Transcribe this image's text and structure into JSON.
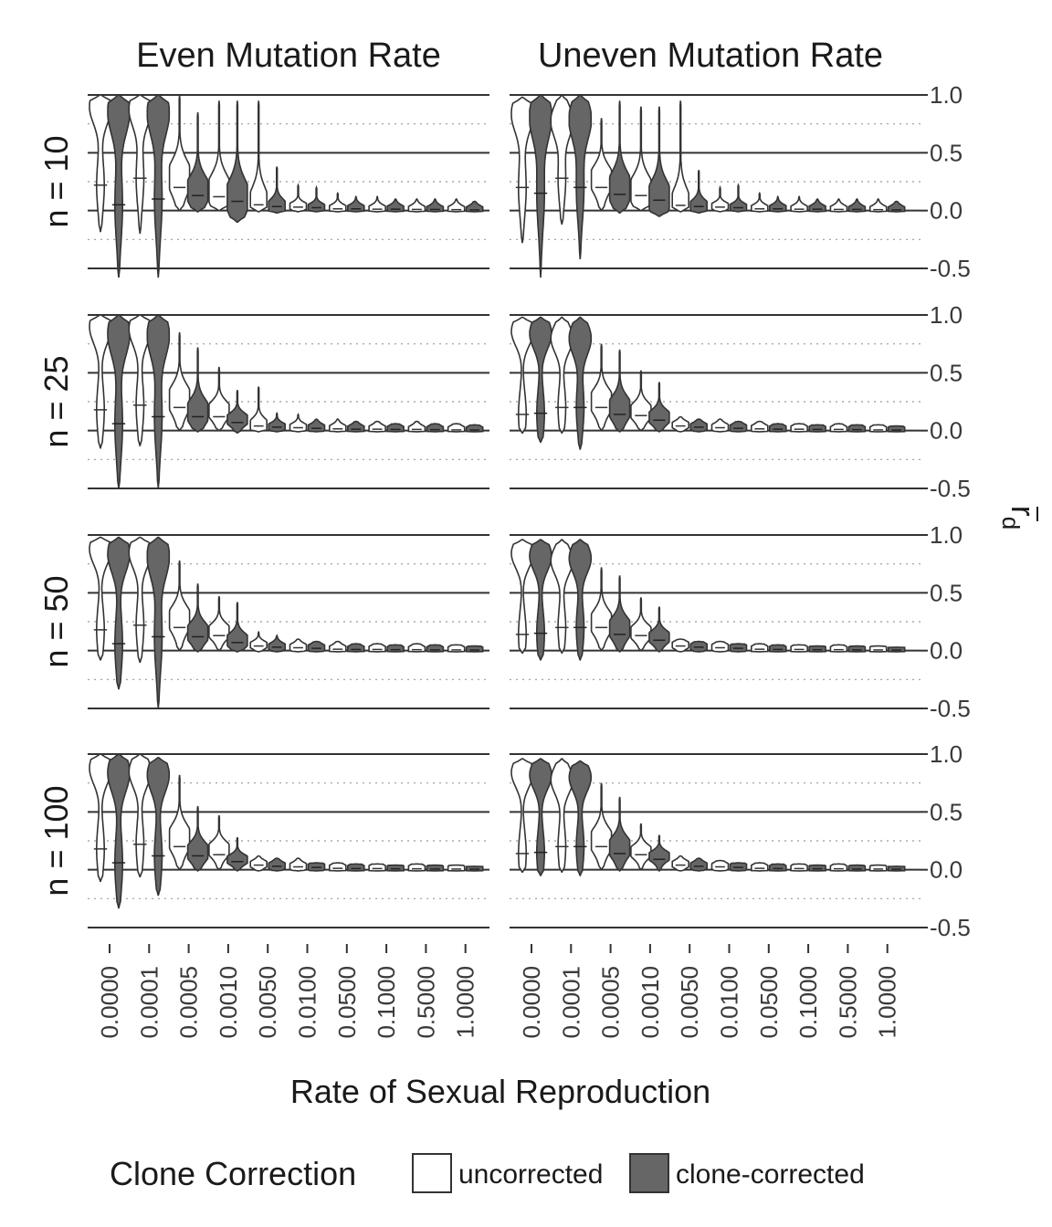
{
  "chart_data": {
    "type": "violin",
    "facet_columns": [
      "Even Mutation Rate",
      "Uneven Mutation Rate"
    ],
    "facet_rows": [
      "n = 10",
      "n = 25",
      "n = 50",
      "n = 100"
    ],
    "categories": [
      "0.0000",
      "0.0001",
      "0.0005",
      "0.0010",
      "0.0050",
      "0.0100",
      "0.0500",
      "0.1000",
      "0.5000",
      "1.0000"
    ],
    "xlabel": "Rate of Sexual Reproduction",
    "ylabel": "r̄d",
    "ylabel_main": "r",
    "ylabel_sub": "d",
    "ylim": [
      -0.5,
      1.0
    ],
    "yticks": [
      "1.0",
      "0.5",
      "0.0",
      "-0.5"
    ],
    "ytick_values": [
      1.0,
      0.5,
      0.0,
      -0.5
    ],
    "minor_grid": [
      0.75,
      0.25,
      -0.25
    ],
    "legend": {
      "title": "Clone Correction",
      "position": "bottom",
      "entries": [
        {
          "name": "uncorrected",
          "color": "#ffffff"
        },
        {
          "name": "clone-corrected",
          "color": "#666666"
        }
      ]
    },
    "series_colors": {
      "uncorrected": "#ffffff",
      "clone-corrected": "#666666"
    },
    "panels": [
      {
        "column": "Even Mutation Rate",
        "row": "n = 10",
        "uncorrected": [
          [
            -0.18,
            1.0,
            0.9,
            0.22
          ],
          [
            -0.2,
            1.0,
            0.88,
            0.28
          ],
          [
            0.0,
            1.0,
            0.3,
            0.2
          ],
          [
            0.0,
            0.95,
            0.18,
            0.12
          ],
          [
            -0.01,
            0.95,
            0.06,
            0.05
          ],
          [
            -0.01,
            0.22,
            0.04,
            0.03
          ],
          [
            -0.01,
            0.15,
            0.02,
            0.015
          ],
          [
            -0.01,
            0.12,
            0.015,
            0.012
          ],
          [
            -0.01,
            0.1,
            0.012,
            0.01
          ],
          [
            -0.01,
            0.1,
            0.01,
            0.008
          ]
        ],
        "clone-corrected": [
          [
            -0.58,
            1.0,
            0.86,
            0.05
          ],
          [
            -0.58,
            1.0,
            0.85,
            0.1
          ],
          [
            -0.01,
            0.85,
            0.18,
            0.13
          ],
          [
            -0.1,
            0.95,
            0.12,
            0.08
          ],
          [
            -0.02,
            0.38,
            0.04,
            0.035
          ],
          [
            -0.01,
            0.2,
            0.03,
            0.025
          ],
          [
            -0.01,
            0.12,
            0.02,
            0.015
          ],
          [
            -0.01,
            0.1,
            0.015,
            0.012
          ],
          [
            -0.01,
            0.1,
            0.01,
            0.01
          ],
          [
            -0.01,
            0.08,
            0.008,
            0.006
          ]
        ]
      },
      {
        "column": "Uneven Mutation Rate",
        "row": "n = 10",
        "uncorrected": [
          [
            -0.28,
            0.98,
            0.84,
            0.2
          ],
          [
            -0.12,
            1.0,
            0.78,
            0.28
          ],
          [
            0.0,
            0.8,
            0.28,
            0.2
          ],
          [
            0.0,
            0.9,
            0.18,
            0.13
          ],
          [
            -0.01,
            0.95,
            0.05,
            0.045
          ],
          [
            -0.01,
            0.2,
            0.04,
            0.03
          ],
          [
            -0.01,
            0.15,
            0.02,
            0.015
          ],
          [
            -0.01,
            0.12,
            0.015,
            0.012
          ],
          [
            -0.01,
            0.1,
            0.012,
            0.01
          ],
          [
            -0.01,
            0.1,
            0.01,
            0.008
          ]
        ],
        "clone-corrected": [
          [
            -0.58,
            1.0,
            0.82,
            0.15
          ],
          [
            -0.42,
            1.0,
            0.8,
            0.2
          ],
          [
            -0.02,
            0.95,
            0.2,
            0.14
          ],
          [
            -0.05,
            0.9,
            0.12,
            0.09
          ],
          [
            -0.02,
            0.35,
            0.04,
            0.035
          ],
          [
            -0.01,
            0.22,
            0.03,
            0.025
          ],
          [
            -0.01,
            0.12,
            0.02,
            0.015
          ],
          [
            -0.01,
            0.1,
            0.015,
            0.012
          ],
          [
            -0.01,
            0.1,
            0.01,
            0.01
          ],
          [
            -0.01,
            0.08,
            0.008,
            0.006
          ]
        ]
      },
      {
        "column": "Even Mutation Rate",
        "row": "n = 25",
        "uncorrected": [
          [
            -0.15,
            1.0,
            0.9,
            0.18
          ],
          [
            -0.13,
            1.0,
            0.88,
            0.22
          ],
          [
            0.0,
            0.85,
            0.28,
            0.2
          ],
          [
            0.0,
            0.55,
            0.18,
            0.12
          ],
          [
            -0.01,
            0.38,
            0.05,
            0.04
          ],
          [
            -0.01,
            0.14,
            0.03,
            0.025
          ],
          [
            -0.01,
            0.1,
            0.02,
            0.015
          ],
          [
            -0.01,
            0.08,
            0.015,
            0.012
          ],
          [
            -0.01,
            0.08,
            0.01,
            0.01
          ],
          [
            -0.01,
            0.06,
            0.008,
            0.006
          ]
        ],
        "clone-corrected": [
          [
            -0.5,
            1.0,
            0.84,
            0.06
          ],
          [
            -0.5,
            1.0,
            0.83,
            0.12
          ],
          [
            -0.01,
            0.72,
            0.17,
            0.12
          ],
          [
            -0.02,
            0.35,
            0.1,
            0.07
          ],
          [
            -0.01,
            0.15,
            0.035,
            0.03
          ],
          [
            -0.01,
            0.1,
            0.025,
            0.02
          ],
          [
            -0.01,
            0.08,
            0.015,
            0.012
          ],
          [
            -0.01,
            0.06,
            0.012,
            0.01
          ],
          [
            -0.01,
            0.06,
            0.01,
            0.008
          ],
          [
            -0.01,
            0.05,
            0.006,
            0.005
          ]
        ]
      },
      {
        "column": "Uneven Mutation Rate",
        "row": "n = 25",
        "uncorrected": [
          [
            -0.02,
            0.98,
            0.86,
            0.14
          ],
          [
            -0.02,
            0.98,
            0.8,
            0.2
          ],
          [
            0.0,
            0.75,
            0.26,
            0.2
          ],
          [
            0.0,
            0.52,
            0.17,
            0.13
          ],
          [
            -0.01,
            0.12,
            0.05,
            0.04
          ],
          [
            -0.01,
            0.1,
            0.03,
            0.025
          ],
          [
            -0.01,
            0.08,
            0.02,
            0.015
          ],
          [
            -0.01,
            0.06,
            0.015,
            0.012
          ],
          [
            -0.01,
            0.06,
            0.01,
            0.01
          ],
          [
            -0.01,
            0.05,
            0.008,
            0.006
          ]
        ],
        "clone-corrected": [
          [
            -0.1,
            0.98,
            0.84,
            0.15
          ],
          [
            -0.16,
            0.98,
            0.8,
            0.2
          ],
          [
            -0.01,
            0.7,
            0.2,
            0.14
          ],
          [
            -0.01,
            0.42,
            0.12,
            0.09
          ],
          [
            -0.01,
            0.1,
            0.035,
            0.03
          ],
          [
            -0.01,
            0.08,
            0.025,
            0.02
          ],
          [
            -0.01,
            0.06,
            0.015,
            0.012
          ],
          [
            -0.01,
            0.05,
            0.012,
            0.01
          ],
          [
            -0.01,
            0.05,
            0.01,
            0.008
          ],
          [
            -0.01,
            0.04,
            0.006,
            0.005
          ]
        ]
      },
      {
        "column": "Even Mutation Rate",
        "row": "n = 50",
        "uncorrected": [
          [
            -0.08,
            0.98,
            0.88,
            0.18
          ],
          [
            -0.1,
            0.98,
            0.85,
            0.22
          ],
          [
            0.0,
            0.78,
            0.28,
            0.2
          ],
          [
            0.0,
            0.47,
            0.17,
            0.13
          ],
          [
            -0.01,
            0.16,
            0.05,
            0.04
          ],
          [
            -0.01,
            0.1,
            0.03,
            0.025
          ],
          [
            -0.01,
            0.08,
            0.015,
            0.012
          ],
          [
            -0.01,
            0.06,
            0.012,
            0.01
          ],
          [
            -0.01,
            0.06,
            0.01,
            0.008
          ],
          [
            -0.01,
            0.05,
            0.008,
            0.006
          ]
        ],
        "clone-corrected": [
          [
            -0.33,
            0.98,
            0.84,
            0.06
          ],
          [
            -0.5,
            0.98,
            0.82,
            0.12
          ],
          [
            -0.01,
            0.58,
            0.16,
            0.12
          ],
          [
            -0.01,
            0.42,
            0.09,
            0.07
          ],
          [
            -0.01,
            0.13,
            0.035,
            0.03
          ],
          [
            -0.01,
            0.08,
            0.025,
            0.02
          ],
          [
            -0.01,
            0.06,
            0.012,
            0.01
          ],
          [
            -0.01,
            0.05,
            0.01,
            0.008
          ],
          [
            -0.01,
            0.05,
            0.008,
            0.006
          ],
          [
            -0.01,
            0.04,
            0.006,
            0.005
          ]
        ]
      },
      {
        "column": "Uneven Mutation Rate",
        "row": "n = 50",
        "uncorrected": [
          [
            -0.02,
            0.96,
            0.84,
            0.14
          ],
          [
            -0.02,
            0.96,
            0.78,
            0.2
          ],
          [
            0.0,
            0.72,
            0.25,
            0.2
          ],
          [
            0.0,
            0.46,
            0.16,
            0.13
          ],
          [
            -0.01,
            0.1,
            0.05,
            0.04
          ],
          [
            -0.01,
            0.08,
            0.03,
            0.025
          ],
          [
            -0.01,
            0.06,
            0.015,
            0.012
          ],
          [
            -0.01,
            0.05,
            0.012,
            0.01
          ],
          [
            -0.01,
            0.05,
            0.01,
            0.008
          ],
          [
            -0.01,
            0.04,
            0.008,
            0.006
          ]
        ],
        "clone-corrected": [
          [
            -0.08,
            0.96,
            0.82,
            0.15
          ],
          [
            -0.08,
            0.96,
            0.8,
            0.2
          ],
          [
            -0.01,
            0.65,
            0.2,
            0.14
          ],
          [
            -0.01,
            0.38,
            0.12,
            0.09
          ],
          [
            -0.01,
            0.08,
            0.035,
            0.03
          ],
          [
            -0.01,
            0.06,
            0.025,
            0.02
          ],
          [
            -0.01,
            0.05,
            0.012,
            0.01
          ],
          [
            -0.01,
            0.04,
            0.01,
            0.008
          ],
          [
            -0.01,
            0.04,
            0.008,
            0.006
          ],
          [
            -0.01,
            0.03,
            0.006,
            0.005
          ]
        ]
      },
      {
        "column": "Even Mutation Rate",
        "row": "n = 100",
        "uncorrected": [
          [
            -0.1,
            1.0,
            0.88,
            0.18
          ],
          [
            -0.06,
            1.0,
            0.85,
            0.22
          ],
          [
            0.0,
            0.82,
            0.28,
            0.2
          ],
          [
            0.0,
            0.47,
            0.18,
            0.13
          ],
          [
            -0.01,
            0.12,
            0.05,
            0.04
          ],
          [
            -0.01,
            0.1,
            0.03,
            0.025
          ],
          [
            -0.01,
            0.06,
            0.015,
            0.012
          ],
          [
            -0.01,
            0.05,
            0.012,
            0.01
          ],
          [
            -0.01,
            0.05,
            0.01,
            0.008
          ],
          [
            -0.01,
            0.04,
            0.008,
            0.006
          ]
        ],
        "clone-corrected": [
          [
            -0.33,
            1.0,
            0.84,
            0.06
          ],
          [
            -0.22,
            0.97,
            0.82,
            0.12
          ],
          [
            -0.01,
            0.55,
            0.16,
            0.12
          ],
          [
            -0.01,
            0.28,
            0.09,
            0.07
          ],
          [
            -0.01,
            0.1,
            0.035,
            0.03
          ],
          [
            -0.01,
            0.06,
            0.025,
            0.02
          ],
          [
            -0.01,
            0.05,
            0.012,
            0.01
          ],
          [
            -0.01,
            0.04,
            0.01,
            0.008
          ],
          [
            -0.01,
            0.04,
            0.008,
            0.006
          ],
          [
            -0.01,
            0.03,
            0.006,
            0.005
          ]
        ]
      },
      {
        "column": "Uneven Mutation Rate",
        "row": "n = 100",
        "uncorrected": [
          [
            -0.02,
            0.96,
            0.84,
            0.14
          ],
          [
            -0.02,
            0.96,
            0.78,
            0.2
          ],
          [
            0.0,
            0.75,
            0.26,
            0.2
          ],
          [
            0.0,
            0.4,
            0.16,
            0.13
          ],
          [
            -0.01,
            0.12,
            0.05,
            0.04
          ],
          [
            -0.01,
            0.08,
            0.03,
            0.025
          ],
          [
            -0.01,
            0.06,
            0.015,
            0.012
          ],
          [
            -0.01,
            0.05,
            0.012,
            0.01
          ],
          [
            -0.01,
            0.05,
            0.01,
            0.008
          ],
          [
            -0.01,
            0.04,
            0.008,
            0.006
          ]
        ],
        "clone-corrected": [
          [
            -0.05,
            0.96,
            0.82,
            0.15
          ],
          [
            -0.05,
            0.94,
            0.8,
            0.2
          ],
          [
            -0.01,
            0.63,
            0.2,
            0.14
          ],
          [
            -0.01,
            0.3,
            0.12,
            0.09
          ],
          [
            -0.01,
            0.1,
            0.035,
            0.03
          ],
          [
            -0.01,
            0.06,
            0.025,
            0.02
          ],
          [
            -0.01,
            0.05,
            0.012,
            0.01
          ],
          [
            -0.01,
            0.04,
            0.01,
            0.008
          ],
          [
            -0.01,
            0.04,
            0.008,
            0.006
          ],
          [
            -0.01,
            0.03,
            0.006,
            0.005
          ]
        ]
      }
    ],
    "panel_value_format": [
      "min",
      "max",
      "mode",
      "median"
    ]
  }
}
